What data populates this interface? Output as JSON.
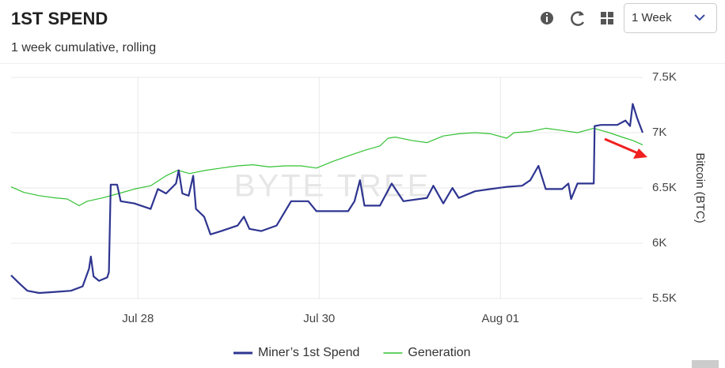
{
  "chart_data": {
    "type": "line",
    "title": "1ST SPEND",
    "subtitle": "1 week cumulative, rolling",
    "period": "1 Week",
    "watermark": "BYTE TREE",
    "y_label": "Bitcoin (BTC)",
    "xlim": [
      26.6,
      33.57
    ],
    "xticks": [
      {
        "value": 28,
        "label": "Jul 28"
      },
      {
        "value": 30,
        "label": "Jul 30"
      },
      {
        "value": 32,
        "label": "Aug 01"
      }
    ],
    "ylim": [
      5500,
      7500
    ],
    "yticks": [
      {
        "value": 5500,
        "label": "5.5K"
      },
      {
        "value": 6000,
        "label": "6K"
      },
      {
        "value": 6500,
        "label": "6.5K"
      },
      {
        "value": 7000,
        "label": "7K"
      },
      {
        "value": 7500,
        "label": "7.5K"
      }
    ],
    "grid": true,
    "legend": "bottom",
    "series": [
      {
        "name": "Miner’s 1st Spend",
        "color": "#2e3590",
        "x": [
          26.6,
          26.7,
          26.78,
          26.91,
          27.09,
          27.26,
          27.39,
          27.46,
          27.48,
          27.51,
          27.57,
          27.66,
          27.68,
          27.7,
          27.77,
          27.81,
          27.96,
          28.14,
          28.22,
          28.31,
          28.42,
          28.45,
          28.49,
          28.56,
          28.61,
          28.64,
          28.73,
          28.8,
          28.92,
          29.1,
          29.17,
          29.23,
          29.36,
          29.53,
          29.69,
          29.88,
          29.97,
          30.15,
          30.32,
          30.39,
          30.45,
          30.5,
          30.67,
          30.8,
          30.93,
          31.19,
          31.26,
          31.37,
          31.47,
          31.54,
          31.72,
          31.89,
          32.07,
          32.24,
          32.33,
          32.42,
          32.5,
          32.68,
          32.75,
          32.78,
          32.85,
          33.03,
          33.04,
          33.11,
          33.29,
          33.38,
          33.43,
          33.46,
          33.51,
          33.57
        ],
        "values": [
          5710,
          5630,
          5570,
          5550,
          5560,
          5570,
          5610,
          5770,
          5880,
          5700,
          5660,
          5690,
          5740,
          6530,
          6530,
          6380,
          6360,
          6310,
          6490,
          6450,
          6540,
          6660,
          6450,
          6430,
          6610,
          6310,
          6240,
          6080,
          6110,
          6160,
          6240,
          6130,
          6110,
          6160,
          6380,
          6380,
          6290,
          6290,
          6290,
          6380,
          6570,
          6340,
          6340,
          6540,
          6380,
          6410,
          6520,
          6360,
          6500,
          6410,
          6470,
          6490,
          6510,
          6520,
          6570,
          6700,
          6490,
          6490,
          6540,
          6400,
          6540,
          6540,
          7060,
          7070,
          7070,
          7110,
          7060,
          7260,
          7130,
          7000
        ]
      },
      {
        "name": "Generation",
        "color": "#33c233",
        "x": [
          26.6,
          26.74,
          26.91,
          27.09,
          27.22,
          27.35,
          27.44,
          27.61,
          27.79,
          27.96,
          28.14,
          28.31,
          28.44,
          28.57,
          28.75,
          28.92,
          29.1,
          29.27,
          29.45,
          29.62,
          29.8,
          29.97,
          30.15,
          30.32,
          30.5,
          30.67,
          30.76,
          30.84,
          31.02,
          31.19,
          31.37,
          31.54,
          31.72,
          31.89,
          32.07,
          32.15,
          32.33,
          32.5,
          32.68,
          32.85,
          33.03,
          33.2,
          33.38,
          33.46,
          33.57
        ],
        "values": [
          6510,
          6460,
          6430,
          6410,
          6400,
          6340,
          6380,
          6410,
          6450,
          6490,
          6520,
          6610,
          6660,
          6630,
          6660,
          6680,
          6700,
          6710,
          6690,
          6700,
          6700,
          6680,
          6740,
          6790,
          6840,
          6880,
          6950,
          6960,
          6930,
          6910,
          6970,
          6990,
          7000,
          6990,
          6950,
          7000,
          7010,
          7040,
          7020,
          7000,
          7040,
          7000,
          6950,
          6930,
          6890
        ]
      }
    ]
  }
}
